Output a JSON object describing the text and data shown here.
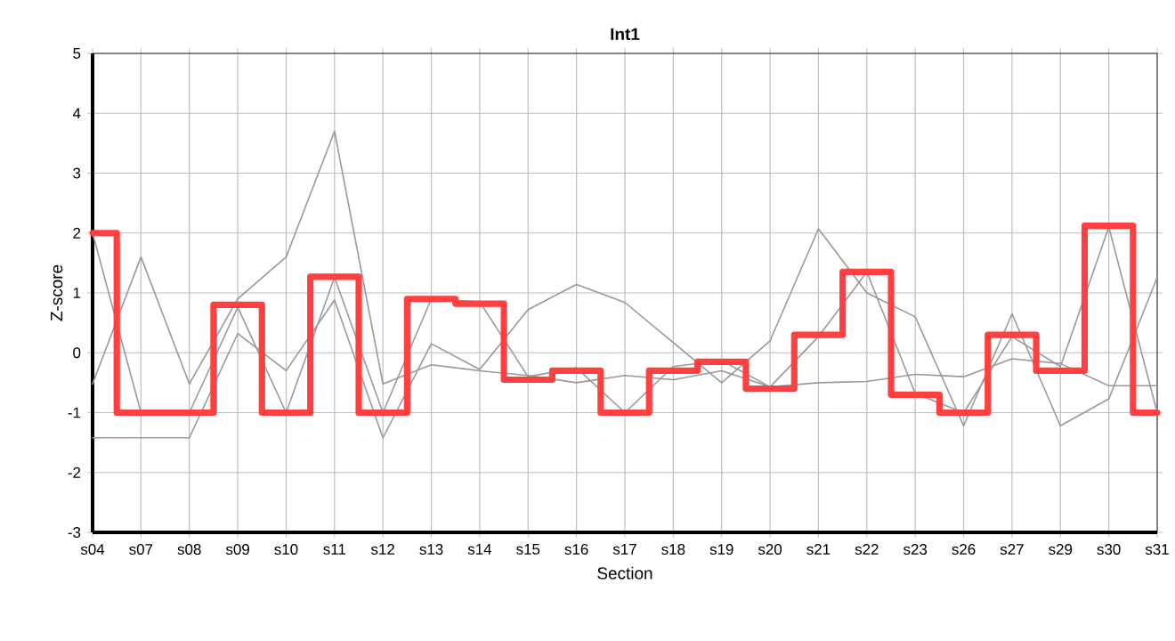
{
  "chart_data": {
    "type": "line",
    "title": "Int1",
    "xlabel": "Section",
    "ylabel": "Z-score",
    "categories": [
      "s04",
      "s07",
      "s08",
      "s09",
      "s10",
      "s11",
      "s12",
      "s13",
      "s14",
      "s15",
      "s16",
      "s17",
      "s18",
      "s19",
      "s20",
      "s21",
      "s22",
      "s23",
      "s26",
      "s27",
      "s29",
      "s30",
      "s31"
    ],
    "ylim": [
      -3,
      5
    ],
    "yticks": [
      -3,
      -2,
      -1,
      0,
      1,
      2,
      3,
      4,
      5
    ],
    "grid": true,
    "marker": "none",
    "line_style": "solid",
    "series": [
      {
        "color": "#999999",
        "values": [
          -1.42,
          -1.42,
          -1.42,
          0.32,
          -0.3,
          0.88,
          -1.42,
          0.15,
          -0.28,
          0.72,
          1.14,
          0.84,
          0.17,
          -0.5,
          0.2,
          2.07,
          1.0,
          0.6,
          -1.22,
          0.65,
          -1.22,
          -0.77,
          1.26
        ]
      },
      {
        "color": "#999999",
        "values": [
          -0.52,
          1.6,
          -0.52,
          0.9,
          1.6,
          3.7,
          -0.52,
          -0.2,
          -0.3,
          -0.38,
          -0.5,
          -0.38,
          -0.45,
          -0.3,
          -0.57,
          -0.5,
          -0.48,
          -0.36,
          -0.4,
          -0.1,
          -0.18,
          -0.55,
          -0.55
        ]
      },
      {
        "color": "#999999",
        "values": [
          2.0,
          -1.0,
          -1.0,
          0.76,
          -1.0,
          1.26,
          -1.0,
          0.9,
          0.85,
          -0.4,
          -0.25,
          -1.0,
          -0.23,
          -0.13,
          -0.57,
          0.27,
          1.35,
          -0.68,
          -1.0,
          0.27,
          -0.23,
          2.1,
          -1.0
        ]
      },
      {
        "type": "step",
        "color": "#ff4040",
        "values": [
          2.0,
          -1.0,
          -1.0,
          0.8,
          -1.0,
          1.27,
          -1.0,
          0.9,
          0.82,
          -0.45,
          -0.3,
          -1.0,
          -0.3,
          -0.15,
          -0.6,
          0.3,
          1.35,
          -0.7,
          -1.0,
          0.3,
          -0.3,
          2.12,
          -1.0
        ]
      }
    ]
  }
}
